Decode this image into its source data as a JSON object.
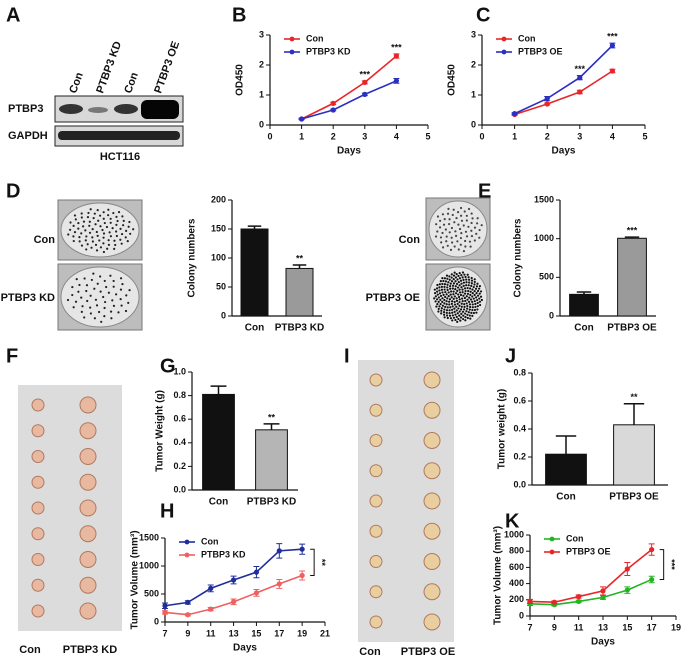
{
  "panel_letters": [
    "A",
    "B",
    "C",
    "D",
    "E",
    "F",
    "G",
    "H",
    "I",
    "J",
    "K"
  ],
  "blot": {
    "lanes": [
      "Con",
      "PTBP3 KD",
      "Con",
      "PTBP3 OE"
    ],
    "rows": [
      "PTBP3",
      "GAPDH"
    ],
    "cell_line": "HCT116"
  },
  "photos": {
    "D": [
      "Con",
      "PTBP3 KD"
    ],
    "E": [
      "Con",
      "PTBP3 OE"
    ],
    "F": [
      "Con",
      "PTBP3 KD"
    ],
    "I": [
      "Con",
      "PTBP3 OE"
    ]
  },
  "chart_data": [
    {
      "type": "line",
      "x_label": "Days",
      "y_label": "OD450",
      "x": [
        1,
        2,
        3,
        4
      ],
      "xlim": [
        0,
        5
      ],
      "xticks": [
        0,
        1,
        2,
        3,
        4,
        5
      ],
      "ylim": [
        0,
        3
      ],
      "yticks": [
        0,
        1,
        2,
        3
      ],
      "legend": "top-left",
      "series": [
        {
          "name": "Con",
          "color": "#e8262a",
          "values": [
            0.2,
            0.72,
            1.42,
            2.3
          ],
          "errors": [
            0.02,
            0.04,
            0.05,
            0.07
          ]
        },
        {
          "name": "PTBP3 KD",
          "color": "#2b30c2",
          "values": [
            0.2,
            0.5,
            1.02,
            1.47
          ],
          "errors": [
            0.02,
            0.03,
            0.04,
            0.08
          ]
        }
      ],
      "annotations": [
        "***",
        "***"
      ]
    },
    {
      "type": "line",
      "x_label": "Days",
      "y_label": "OD450",
      "x": [
        1,
        2,
        3,
        4
      ],
      "xlim": [
        0,
        5
      ],
      "xticks": [
        0,
        1,
        2,
        3,
        4,
        5
      ],
      "ylim": [
        0,
        3
      ],
      "yticks": [
        0,
        1,
        2,
        3
      ],
      "legend": "top-left",
      "series": [
        {
          "name": "Con",
          "color": "#e8262a",
          "values": [
            0.35,
            0.7,
            1.1,
            1.8
          ],
          "errors": [
            0.03,
            0.03,
            0.06,
            0.06
          ]
        },
        {
          "name": "PTBP3 OE",
          "color": "#2b30c2",
          "values": [
            0.38,
            0.88,
            1.58,
            2.65
          ],
          "errors": [
            0.03,
            0.07,
            0.07,
            0.08
          ]
        }
      ],
      "annotations": [
        "***",
        "***"
      ]
    },
    {
      "type": "bar",
      "y_label": "Colony numbers",
      "categories": [
        "Con",
        "PTBP3 KD"
      ],
      "values": [
        150,
        82
      ],
      "errors": [
        5,
        6
      ],
      "colors": [
        "#111111",
        "#9a9a9a"
      ],
      "ylim": [
        0,
        200
      ],
      "yticks": [
        0,
        50,
        100,
        150,
        200
      ],
      "annotations": [
        "**"
      ]
    },
    {
      "type": "bar",
      "y_label": "Colony numbers",
      "categories": [
        "Con",
        "PTBP3 OE"
      ],
      "values": [
        280,
        1005
      ],
      "errors": [
        30,
        15
      ],
      "colors": [
        "#111111",
        "#9a9a9a"
      ],
      "ylim": [
        0,
        1500
      ],
      "yticks": [
        0,
        500,
        1000,
        1500
      ],
      "annotations": [
        "***"
      ]
    },
    {
      "type": "bar",
      "y_label": "Tumor Weight (g)",
      "categories": [
        "Con",
        "PTBP3 KD"
      ],
      "values": [
        0.81,
        0.51
      ],
      "errors": [
        0.07,
        0.05
      ],
      "colors": [
        "#111111",
        "#b5b5b5"
      ],
      "ylim": [
        0,
        1.0
      ],
      "yticks": [
        {
          "value": 0,
          "label": "0.0"
        },
        0.2,
        0.4,
        0.6,
        0.8,
        {
          "value": 1,
          "label": "1.0"
        }
      ],
      "annotations": [
        "**"
      ]
    },
    {
      "type": "line",
      "x_label": "Days",
      "y_label": "Tumor Volume (mm³)",
      "x": [
        7,
        9,
        11,
        13,
        15,
        17,
        19
      ],
      "xlim": [
        7,
        21
      ],
      "xticks": [
        7,
        9,
        11,
        13,
        15,
        17,
        19,
        21
      ],
      "ylim": [
        0,
        1500
      ],
      "yticks": [
        0,
        500,
        1000,
        1500
      ],
      "legend": "top-left",
      "series": [
        {
          "name": "Con",
          "color": "#1f2e9b",
          "values": [
            290,
            350,
            600,
            750,
            890,
            1270,
            1300
          ],
          "errors": [
            50,
            30,
            60,
            70,
            100,
            130,
            90
          ]
        },
        {
          "name": "PTBP3 KD",
          "color": "#f06060",
          "values": [
            170,
            130,
            230,
            360,
            520,
            680,
            830
          ],
          "errors": [
            30,
            20,
            30,
            50,
            60,
            80,
            80
          ]
        }
      ],
      "annotations": [
        "**"
      ]
    },
    {
      "type": "bar",
      "y_label": "Tumor weight (g)",
      "categories": [
        "Con",
        "PTBP3 OE"
      ],
      "values": [
        0.22,
        0.43
      ],
      "errors": [
        0.13,
        0.15
      ],
      "colors": [
        "#111111",
        "#d9d9d9"
      ],
      "ylim": [
        0,
        0.8
      ],
      "yticks": [
        {
          "value": 0,
          "label": "0.0"
        },
        0.2,
        0.4,
        0.6,
        0.8
      ],
      "annotations": [
        "**"
      ]
    },
    {
      "type": "line",
      "x_label": "Days",
      "y_label": "Tumor Volume (mm³)",
      "x": [
        7,
        9,
        11,
        13,
        15,
        17
      ],
      "xlim": [
        7,
        19
      ],
      "xticks": [
        7,
        9,
        11,
        13,
        15,
        17,
        19
      ],
      "ylim": [
        0,
        1000
      ],
      "yticks": [
        0,
        200,
        400,
        600,
        800,
        1000
      ],
      "legend": "top-left",
      "series": [
        {
          "name": "Con",
          "color": "#22b522",
          "values": [
            150,
            140,
            180,
            230,
            320,
            450
          ],
          "errors": [
            20,
            15,
            15,
            25,
            40,
            40
          ]
        },
        {
          "name": "PTBP3 OE",
          "color": "#e8262a",
          "values": [
            180,
            170,
            240,
            310,
            580,
            820
          ],
          "errors": [
            25,
            15,
            20,
            50,
            80,
            70
          ]
        }
      ],
      "annotations": [
        "***"
      ]
    }
  ]
}
